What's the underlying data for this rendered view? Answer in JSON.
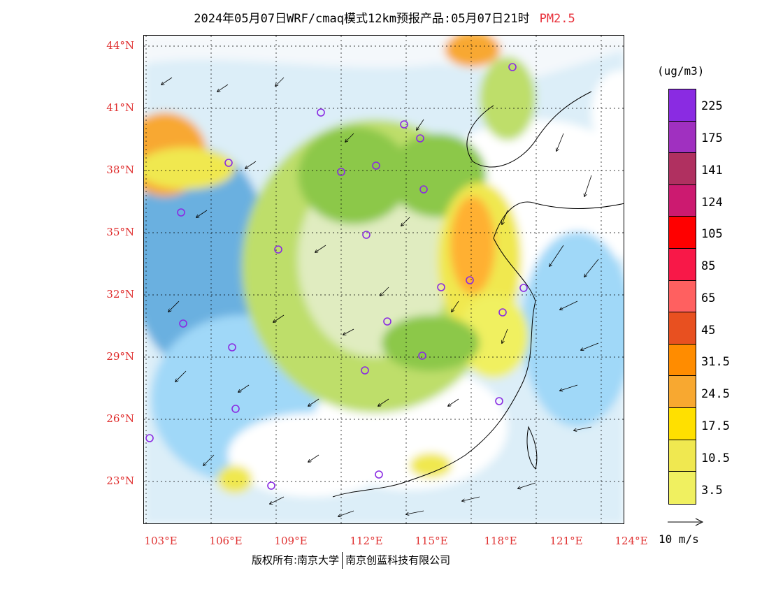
{
  "title": {
    "text": "2024年05月07日WRF/cmaq模式12km预报产品:05月07日21时",
    "tag": "PM2.5"
  },
  "map": {
    "lat_labels": [
      "44°N",
      "41°N",
      "38°N",
      "35°N",
      "32°N",
      "29°N",
      "26°N",
      "23°N"
    ],
    "lon_labels": [
      "103°E",
      "106°E",
      "109°E",
      "112°E",
      "115°E",
      "118°E",
      "121°E",
      "124°E"
    ],
    "colors": {
      "label": "#e03030",
      "marker": "#8a2be2"
    }
  },
  "legend": {
    "unit": "(ug/m3)",
    "colors": [
      "#7b2fd8",
      "#9b35c8",
      "#b03060",
      "#cc1a70",
      "#ff0000",
      "#f8154a",
      "#ff6060",
      "#e85020",
      "#ff8c00",
      "#f8a830",
      "#ffb030",
      "#ffe000",
      "#f8e850",
      "#f0f060",
      "#6aa832",
      "#8cc84a",
      "#bede6a",
      "#a8d060",
      "#e0ecc0",
      "#4a90c8",
      "#6ab0e0",
      "#a0d8f8",
      "#dceef8",
      "#ffffff"
    ],
    "bands": [
      "#8a2be2",
      "#a030c0",
      "#b03060",
      "#cc1a70",
      "#ff0000",
      "#f81848",
      "#ff6060",
      "#e85020",
      "#ff8c00",
      "#f8a830",
      "#ffe000",
      "#f0e850",
      "#f0f060"
    ],
    "labels": [
      "225",
      "175",
      "141",
      "124",
      "105",
      "85",
      "65",
      "45",
      "31.5",
      "24.5",
      "17.5",
      "10.5",
      "3.5"
    ]
  },
  "vector": {
    "label": "10 m/s"
  },
  "credit": {
    "left": "版权所有:南京大学",
    "right": "南京创蓝科技有限公司"
  }
}
